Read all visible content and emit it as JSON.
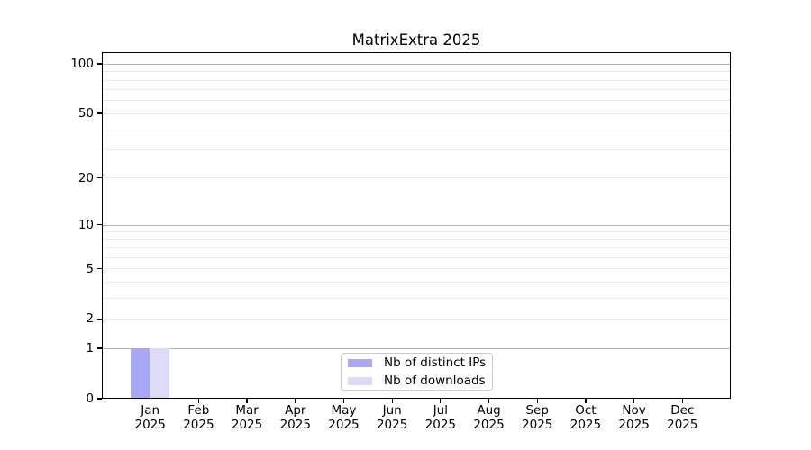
{
  "chart_data": {
    "type": "bar",
    "title": "MatrixExtra 2025",
    "x_categories": [
      {
        "month": "Jan",
        "year": "2025"
      },
      {
        "month": "Feb",
        "year": "2025"
      },
      {
        "month": "Mar",
        "year": "2025"
      },
      {
        "month": "Apr",
        "year": "2025"
      },
      {
        "month": "May",
        "year": "2025"
      },
      {
        "month": "Jun",
        "year": "2025"
      },
      {
        "month": "Jul",
        "year": "2025"
      },
      {
        "month": "Aug",
        "year": "2025"
      },
      {
        "month": "Sep",
        "year": "2025"
      },
      {
        "month": "Oct",
        "year": "2025"
      },
      {
        "month": "Nov",
        "year": "2025"
      },
      {
        "month": "Dec",
        "year": "2025"
      }
    ],
    "series": [
      {
        "name": "Nb of distinct IPs",
        "color": "#a8a8f6",
        "values": [
          1,
          0,
          0,
          0,
          0,
          0,
          0,
          0,
          0,
          0,
          0,
          0
        ]
      },
      {
        "name": "Nb of downloads",
        "color": "#dcdcf8",
        "values": [
          1,
          0,
          0,
          0,
          0,
          0,
          0,
          0,
          0,
          0,
          0,
          0
        ]
      }
    ],
    "y_axis": {
      "scale": "log10(value+1)",
      "tick_labels": [
        "0",
        "1",
        "2",
        "5",
        "10",
        "20",
        "50",
        "100"
      ],
      "tick_values": [
        0,
        1,
        2,
        5,
        10,
        20,
        50,
        100
      ],
      "major_grid_values": [
        1,
        10,
        100
      ],
      "minor_grid_values": [
        2,
        3,
        4,
        5,
        6,
        7,
        8,
        9,
        20,
        30,
        40,
        50,
        60,
        70,
        80,
        90
      ],
      "ylim": [
        0,
        117
      ]
    },
    "legend": {
      "position": "lower center"
    },
    "colors": {
      "major_grid": "#b2b2b2",
      "minor_grid": "#e8e8e8",
      "axis": "#000000",
      "background": "#ffffff"
    }
  }
}
